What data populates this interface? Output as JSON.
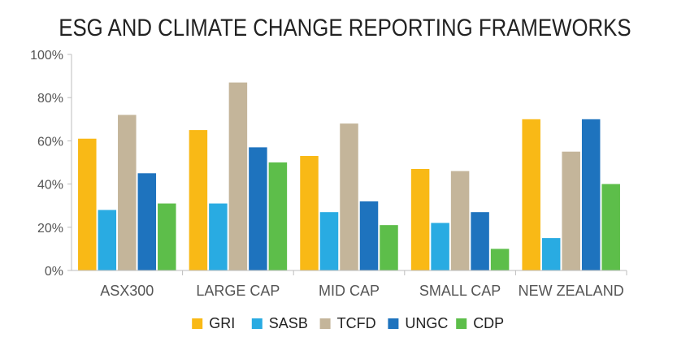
{
  "chart_data": {
    "type": "bar",
    "title": "ESG AND CLIMATE CHANGE REPORTING FRAMEWORKS",
    "categories": [
      "ASX300",
      "LARGE CAP",
      "MID CAP",
      "SMALL CAP",
      "NEW ZEALAND"
    ],
    "series": [
      {
        "name": "GRI",
        "color": "#F9B916",
        "values": [
          61,
          65,
          53,
          47,
          70
        ]
      },
      {
        "name": "SASB",
        "color": "#29ABE2",
        "values": [
          28,
          31,
          27,
          22,
          15
        ]
      },
      {
        "name": "TCFD",
        "color": "#C4B59A",
        "values": [
          72,
          87,
          68,
          46,
          55
        ]
      },
      {
        "name": "UNGC",
        "color": "#1E73BE",
        "values": [
          45,
          57,
          32,
          27,
          70
        ]
      },
      {
        "name": "CDP",
        "color": "#5DBE4A",
        "values": [
          31,
          50,
          21,
          10,
          40
        ]
      }
    ],
    "ylim": [
      0,
      100
    ],
    "yticks": [
      0,
      20,
      40,
      60,
      80,
      100
    ],
    "ytick_labels": [
      "0%",
      "20%",
      "40%",
      "60%",
      "80%",
      "100%"
    ],
    "grid": false,
    "legend": "bottom"
  }
}
